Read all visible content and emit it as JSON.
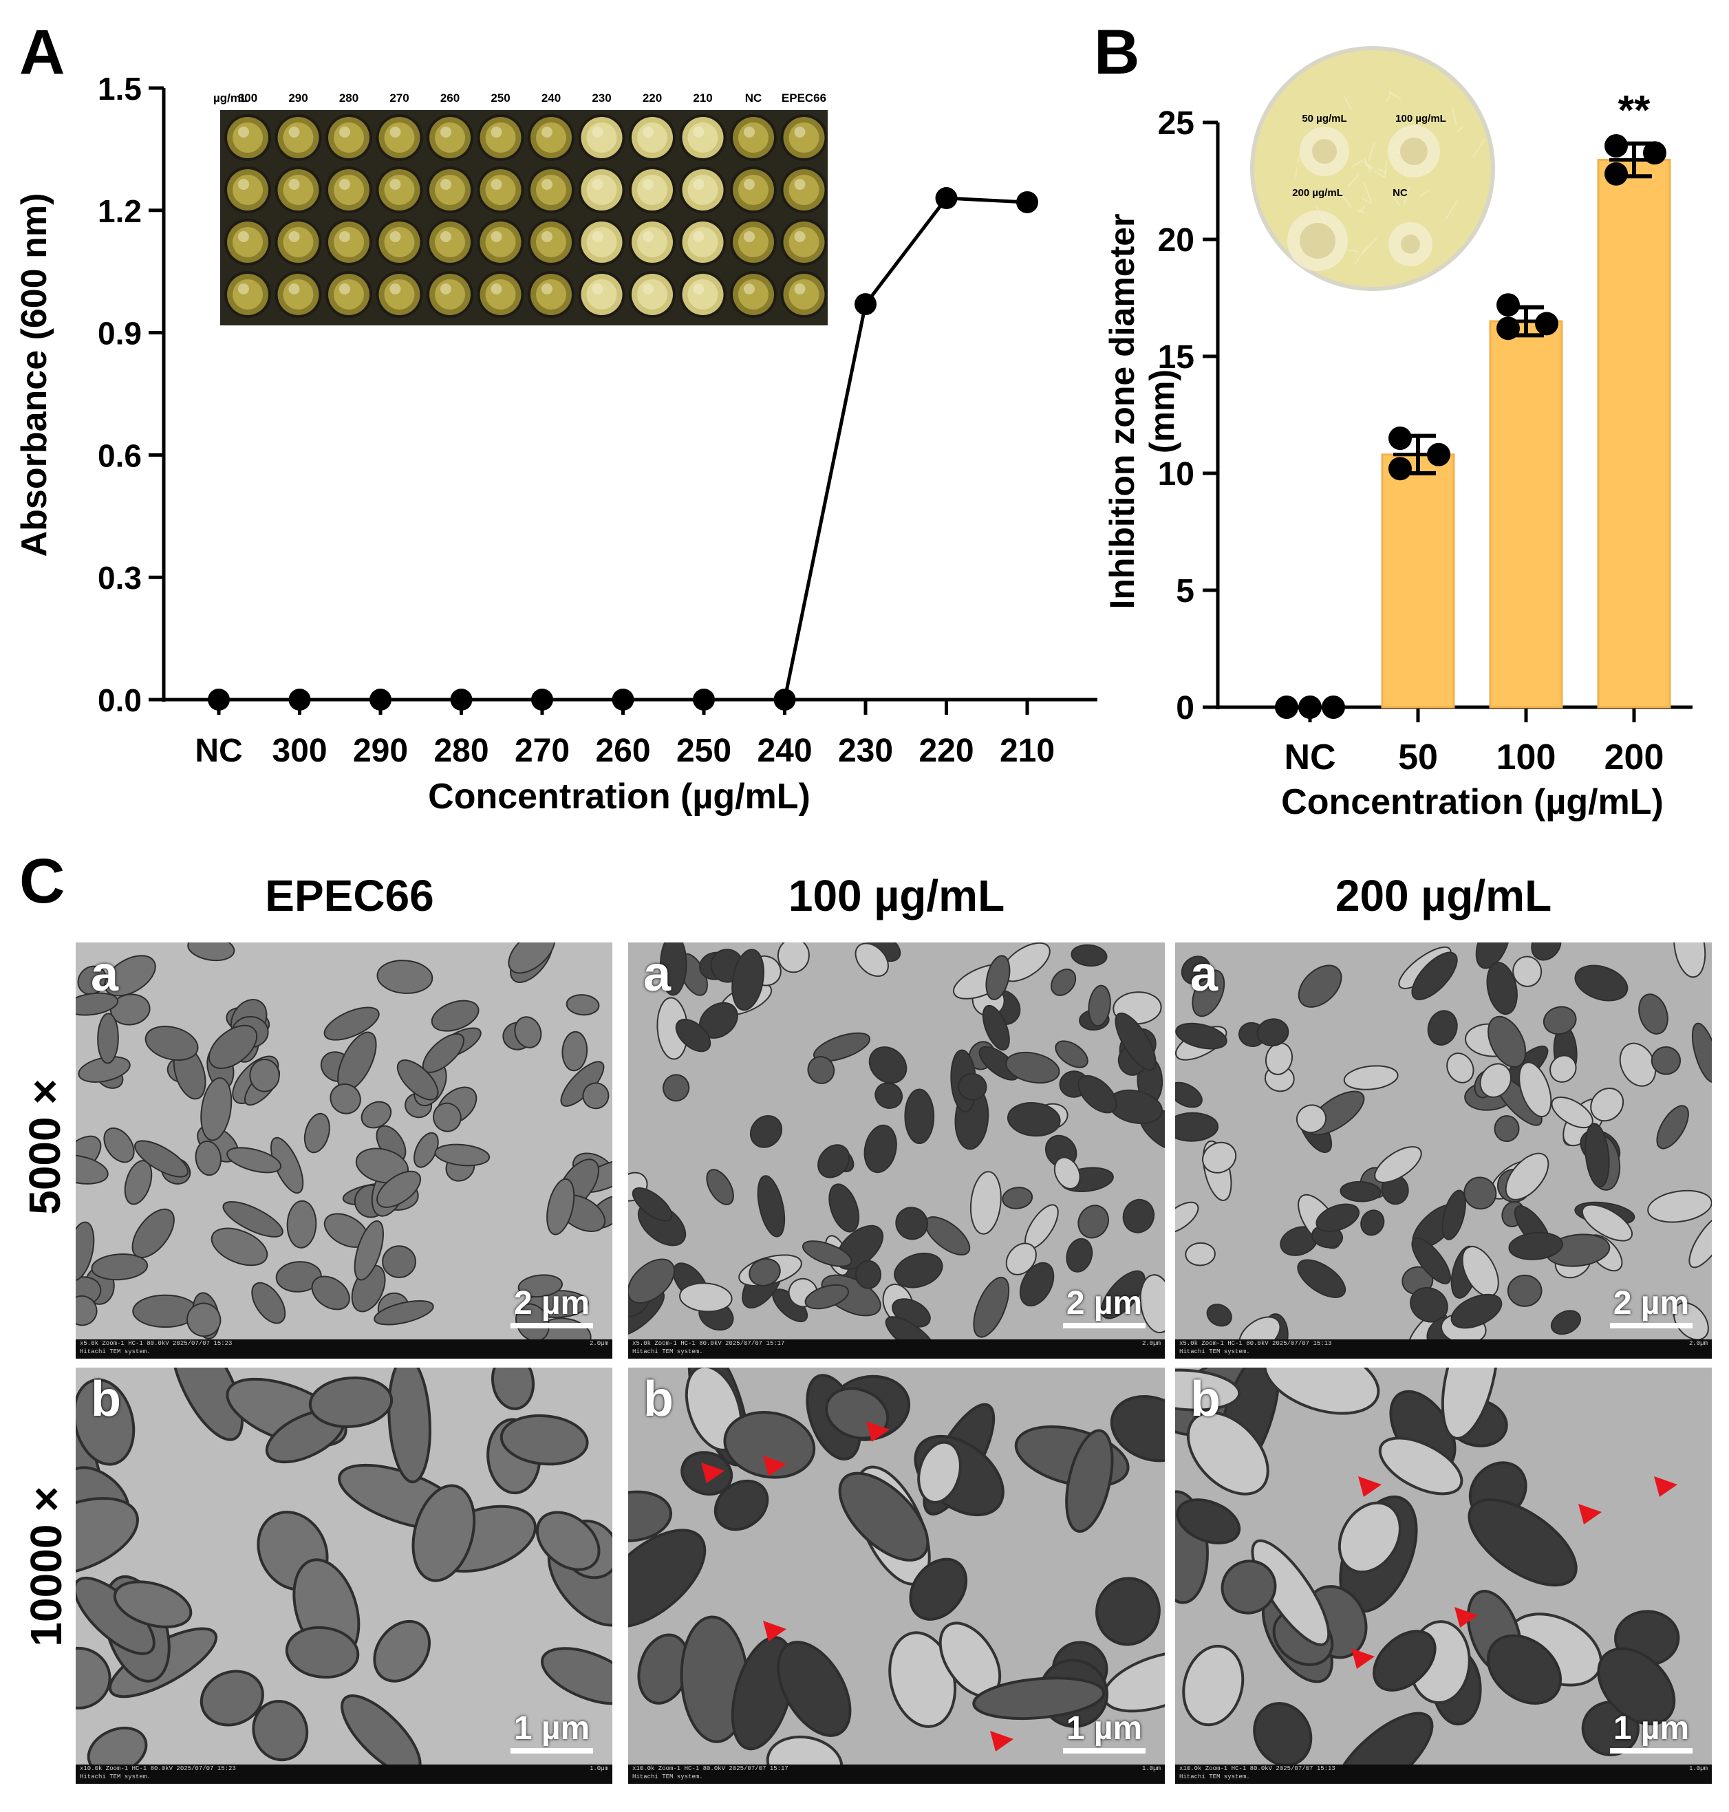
{
  "panels": {
    "a": "A",
    "b": "B",
    "c": "C"
  },
  "colors": {
    "bar_fill": "#FFC45E",
    "bar_edge": "#F2B04A",
    "point": "#000000",
    "plate_agar": "#E8E1A0",
    "well_yellow": "#C8BE5A",
    "arrowhead": "#E8141C"
  },
  "chart_data": [
    {
      "type": "line",
      "categories": [
        "NC",
        "300",
        "290",
        "280",
        "270",
        "260",
        "250",
        "240",
        "230",
        "220",
        "210"
      ],
      "values": [
        0.0,
        0.0,
        0.0,
        0.0,
        0.0,
        0.0,
        0.0,
        0.0,
        0.97,
        1.23,
        1.22
      ],
      "xlabel": "Concentration (µg/mL)",
      "ylabel": "Absorbance (600 nm)",
      "ylim": [
        0,
        1.5
      ],
      "yticks": [
        "0.0",
        "0.3",
        "0.6",
        "0.9",
        "1.2",
        "1.5"
      ],
      "grid": false,
      "inset": {
        "type": "photo of 96-well plate",
        "unit_label": "µg/mL",
        "column_labels": [
          "300",
          "290",
          "280",
          "270",
          "260",
          "250",
          "240",
          "230",
          "220",
          "210",
          "NC",
          "EPEC66"
        ],
        "turbid_columns": 7
      }
    },
    {
      "type": "bar",
      "categories": [
        "NC",
        "50",
        "100",
        "200"
      ],
      "values": [
        0.0,
        10.8,
        16.5,
        23.4
      ],
      "error": [
        0.0,
        0.8,
        0.6,
        0.7
      ],
      "points": [
        [
          0.0,
          0.0,
          0.0
        ],
        [
          11.5,
          10.2,
          10.8
        ],
        [
          17.2,
          16.2,
          16.4
        ],
        [
          24.0,
          22.8,
          23.7
        ]
      ],
      "significance": [
        "",
        "",
        "",
        "**"
      ],
      "xlabel": "Concentration (µg/mL)",
      "ylabel": "Inhibition zone diameter (mm)",
      "ylim": [
        0,
        25
      ],
      "yticks": [
        "0",
        "5",
        "10",
        "15",
        "20",
        "25"
      ],
      "grid": false,
      "inset": {
        "type": "photo of agar plate",
        "labels": [
          "50 µg/mL",
          "100 µg/mL",
          "200 µg/mL",
          "NC"
        ]
      }
    }
  ],
  "tem": {
    "columns": [
      "EPEC66",
      "100 µg/mL",
      "200 µg/mL"
    ],
    "rows": [
      "5000 ×",
      "10000 ×"
    ],
    "sub_a": "a",
    "sub_b": "b",
    "scale_5000": "2 µm",
    "scale_10000": "1 µm",
    "info_line1_5000": [
      "x5.0k Zoom-1 HC-1 80.0kV 2025/07/07 15:23",
      "x5.0k Zoom-1 HC-1 80.0kV 2025/07/07 15:17",
      "x5.0k Zoom-1 HC-1 80.0kV 2025/07/07 15:13"
    ],
    "info_line1_10000": [
      "x10.0k Zoom-1 HC-1 80.0kV 2025/07/07 15:23",
      "x10.0k Zoom-1 HC-1 80.0kV 2025/07/07 15:17",
      "x10.0k Zoom-1 HC-1 80.0kV 2025/07/07 15:13"
    ],
    "info_line2": "Hitachi TEM system.",
    "info_right_5000": "2.0µm",
    "info_right_10000": "1.0µm"
  }
}
